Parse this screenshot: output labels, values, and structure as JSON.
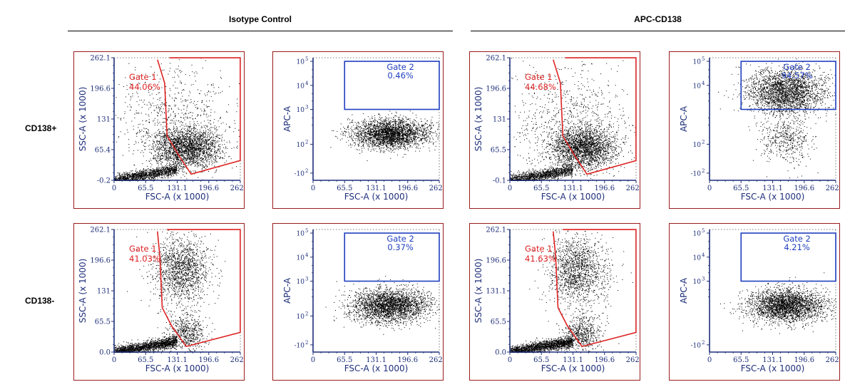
{
  "headers": {
    "isotype": "Isotype Control",
    "apc": "APC-CD138"
  },
  "rows": {
    "pos": "CD138+",
    "neg": "CD138-"
  },
  "colors": {
    "frame": "#9b1c1c",
    "axis": "#1f2f7a",
    "gate1": "#dd2222",
    "gate2": "#1f3fbf",
    "dots": "#000000"
  },
  "chart_data": [
    {
      "id": "iso-pos-g1",
      "type": "scatter",
      "kind": "scatter-gate",
      "xlabel": "FSC-A (x 1000)",
      "ylabel": "SSC-A (x 1000)",
      "xticks": [
        "0",
        "65.5",
        "131.1",
        "196.6",
        "262.1"
      ],
      "yticks": [
        "-0.2",
        "65.4",
        "131",
        "196.6",
        "262.1"
      ],
      "xlim": [
        0,
        262.1
      ],
      "ylim": [
        -0.2,
        262.1
      ],
      "gate_name": "Gate 1",
      "gate_pct": "44.06%",
      "gate_polygon": [
        [
          90,
          258
        ],
        [
          105,
          208
        ],
        [
          110,
          95
        ],
        [
          135,
          52
        ],
        [
          160,
          13
        ],
        [
          262,
          42
        ],
        [
          262,
          262
        ],
        [
          115,
          262
        ]
      ],
      "populations": [
        {
          "mean": [
            150,
            70
          ],
          "sd": [
            35,
            22
          ],
          "n": 2400
        },
        {
          "mean": [
            40,
            10
          ],
          "sd": [
            30,
            8
          ],
          "n": 1400
        },
        {
          "mean": [
            120,
            140
          ],
          "sd": [
            70,
            55
          ],
          "n": 700
        }
      ]
    },
    {
      "id": "iso-pos-g2",
      "type": "scatter",
      "kind": "apc-gate",
      "xlabel": "FSC-A (x 1000)",
      "ylabel": "APC-A",
      "xticks": [
        "0",
        "65.5",
        "131.1",
        "196.6",
        "262.1"
      ],
      "yticks": [
        "10^5",
        "10^4",
        "10^3",
        "10^2",
        "-10^2"
      ],
      "gate_name": "Gate 2",
      "gate_pct": "0.46%",
      "gate_rect": {
        "x0": 65.5,
        "x1": 262.1,
        "y_low": "10^3",
        "y_high": "10^5"
      },
      "populations": [
        {
          "mean": [
            160,
            1.95
          ],
          "sd": [
            40,
            0.3
          ],
          "n": 2800
        }
      ]
    },
    {
      "id": "apc-pos-g1",
      "type": "scatter",
      "kind": "scatter-gate",
      "xlabel": "FSC-A (x 1000)",
      "ylabel": "SSC-A (x 1000)",
      "xticks": [
        "0",
        "65.5",
        "131.1",
        "196.6",
        "262.1"
      ],
      "yticks": [
        "-0.1",
        "65.5",
        "131",
        "196.6",
        "262.1"
      ],
      "xlim": [
        0,
        262.1
      ],
      "ylim": [
        -0.1,
        262.1
      ],
      "gate_name": "Gate 1",
      "gate_pct": "44.68%",
      "gate_polygon": [
        [
          90,
          258
        ],
        [
          105,
          208
        ],
        [
          110,
          95
        ],
        [
          135,
          52
        ],
        [
          160,
          13
        ],
        [
          262,
          42
        ],
        [
          262,
          262
        ],
        [
          115,
          262
        ]
      ],
      "populations": [
        {
          "mean": [
            150,
            70
          ],
          "sd": [
            35,
            22
          ],
          "n": 2400
        },
        {
          "mean": [
            40,
            10
          ],
          "sd": [
            30,
            8
          ],
          "n": 1400
        },
        {
          "mean": [
            120,
            140
          ],
          "sd": [
            70,
            55
          ],
          "n": 700
        }
      ]
    },
    {
      "id": "apc-pos-g2",
      "type": "scatter",
      "kind": "apc-gate",
      "xlabel": "FSC-A (x 1000)",
      "ylabel": "APC-A",
      "xticks": [
        "0",
        "65.5",
        "131.1",
        "196.6",
        "262.1"
      ],
      "yticks": [
        "10^5",
        "10^4",
        "10^2",
        "-10^2"
      ],
      "gate_name": "Gate 2",
      "gate_pct": "94.57%",
      "gate_rect": {
        "x0": 65.5,
        "x1": 262.1,
        "y_low": "10^3",
        "y_high": "10^5"
      },
      "populations": [
        {
          "mean": [
            160,
            3.7
          ],
          "sd": [
            40,
            0.45
          ],
          "n": 2600
        },
        {
          "mean": [
            160,
            1.7
          ],
          "sd": [
            25,
            0.5
          ],
          "n": 500
        }
      ]
    },
    {
      "id": "iso-neg-g1",
      "type": "scatter",
      "kind": "scatter-gate",
      "xlabel": "FSC-A (x 1000)",
      "ylabel": "SSC-A (x 1000)",
      "xticks": [
        "0",
        "65.5",
        "131.1",
        "196.6",
        "262.1"
      ],
      "yticks": [
        "0.0",
        "65.5",
        "131",
        "196.6",
        "262.1"
      ],
      "xlim": [
        0,
        262.1
      ],
      "ylim": [
        0,
        262.1
      ],
      "gate_name": "Gate 1",
      "gate_pct": "41.03%",
      "gate_polygon": [
        [
          90,
          258
        ],
        [
          95,
          205
        ],
        [
          100,
          95
        ],
        [
          120,
          55
        ],
        [
          150,
          12
        ],
        [
          262,
          42
        ],
        [
          262,
          262
        ],
        [
          110,
          262
        ]
      ],
      "populations": [
        {
          "mean": [
            140,
            175
          ],
          "sd": [
            30,
            35
          ],
          "n": 1500
        },
        {
          "mean": [
            80,
            18
          ],
          "sd": [
            45,
            12
          ],
          "n": 1900
        },
        {
          "mean": [
            150,
            40
          ],
          "sd": [
            20,
            20
          ],
          "n": 600
        }
      ]
    },
    {
      "id": "iso-neg-g2",
      "type": "scatter",
      "kind": "apc-gate",
      "xlabel": "FSC-A (x 1000)",
      "ylabel": "APC-A",
      "xticks": [
        "0",
        "65.5",
        "131.1",
        "196.6",
        "262.1"
      ],
      "yticks": [
        "10^5",
        "10^4",
        "10^3",
        "10^2",
        "-10^2"
      ],
      "gate_name": "Gate 2",
      "gate_pct": "0.37%",
      "gate_rect": {
        "x0": 65.5,
        "x1": 262.1,
        "y_low": "10^3",
        "y_high": "10^5"
      },
      "populations": [
        {
          "mean": [
            160,
            1.95
          ],
          "sd": [
            40,
            0.35
          ],
          "n": 2800
        }
      ]
    },
    {
      "id": "apc-neg-g1",
      "type": "scatter",
      "kind": "scatter-gate",
      "xlabel": "FSC-A (x 1000)",
      "ylabel": "SSC-A (x 1000)",
      "xticks": [
        "0",
        "65.5",
        "131.1",
        "196.6",
        "262.1"
      ],
      "yticks": [
        "0.0",
        "65.5",
        "131.1",
        "196.6",
        "262.1"
      ],
      "xlim": [
        0,
        262.1
      ],
      "ylim": [
        0,
        262.1
      ],
      "gate_name": "Gate 1",
      "gate_pct": "41.63%",
      "gate_polygon": [
        [
          90,
          258
        ],
        [
          95,
          205
        ],
        [
          100,
          95
        ],
        [
          120,
          55
        ],
        [
          150,
          12
        ],
        [
          262,
          42
        ],
        [
          262,
          262
        ],
        [
          110,
          262
        ]
      ],
      "populations": [
        {
          "mean": [
            140,
            175
          ],
          "sd": [
            30,
            35
          ],
          "n": 1500
        },
        {
          "mean": [
            80,
            18
          ],
          "sd": [
            45,
            12
          ],
          "n": 1900
        },
        {
          "mean": [
            150,
            40
          ],
          "sd": [
            20,
            20
          ],
          "n": 600
        }
      ]
    },
    {
      "id": "apc-neg-g2",
      "type": "scatter",
      "kind": "apc-gate",
      "xlabel": "FSC-A (x 1000)",
      "ylabel": "APC-A",
      "xticks": [
        "0",
        "65.5",
        "131.1",
        "196.6",
        "262.1"
      ],
      "yticks": [
        "10^5",
        "10^4",
        "10^3",
        "-10^2"
      ],
      "gate_name": "Gate 2",
      "gate_pct": "4.21%",
      "gate_rect": {
        "x0": 65.5,
        "x1": 262.1,
        "y_low": "10^3",
        "y_high": "10^5"
      },
      "populations": [
        {
          "mean": [
            160,
            1.95
          ],
          "sd": [
            40,
            0.35
          ],
          "n": 2800
        }
      ]
    }
  ]
}
